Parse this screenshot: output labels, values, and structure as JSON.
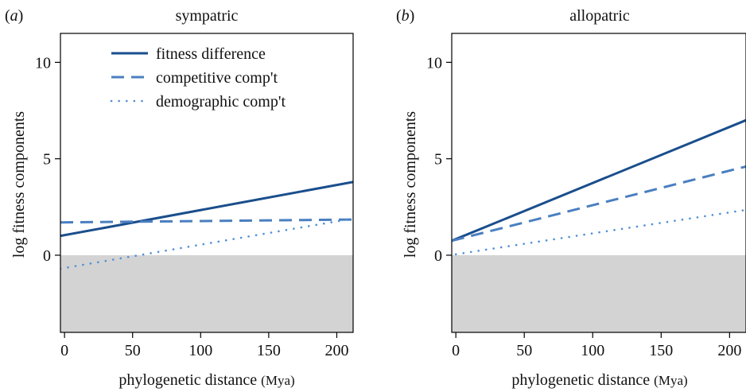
{
  "colors": {
    "fitness_difference": "#1a4e8c",
    "competitive": "#4a7fc1",
    "demographic": "#4f8fd6",
    "shading": "#d3d3d3",
    "frame": "#000000"
  },
  "chart_data": [
    {
      "type": "line",
      "panel_label_open": "(",
      "panel_label_letter": "a",
      "panel_label_close": ")",
      "title": "sympatric",
      "xlabel": "phylogenetic distance",
      "xunit": "(Mya)",
      "ylabel": "log fitness components",
      "xlim": [
        -3,
        212
      ],
      "ylim": [
        -4,
        11.5
      ],
      "xticks": [
        0,
        50,
        100,
        150,
        200
      ],
      "yticks": [
        0,
        5,
        10
      ],
      "shade_below": 0,
      "grid": false,
      "legend": {
        "placement": "top-left",
        "entries": [
          "fitness difference",
          "competitive comp't",
          "demographic comp't"
        ]
      },
      "series": [
        {
          "name": "fitness difference",
          "style": "solid",
          "x": [
            -3,
            212
          ],
          "y": [
            1.0,
            3.8
          ]
        },
        {
          "name": "competitive comp't",
          "style": "dashed",
          "x": [
            -3,
            212
          ],
          "y": [
            1.7,
            1.85
          ]
        },
        {
          "name": "demographic comp't",
          "style": "dotted",
          "x": [
            -3,
            212
          ],
          "y": [
            -0.7,
            1.9
          ]
        }
      ]
    },
    {
      "type": "line",
      "panel_label_open": "(",
      "panel_label_letter": "b",
      "panel_label_close": ")",
      "title": "allopatric",
      "xlabel": "phylogenetic distance",
      "xunit": "(Mya)",
      "ylabel": "log fitness components",
      "xlim": [
        -3,
        212
      ],
      "ylim": [
        -4,
        11.5
      ],
      "xticks": [
        0,
        50,
        100,
        150,
        200
      ],
      "yticks": [
        0,
        5,
        10
      ],
      "shade_below": 0,
      "grid": false,
      "series": [
        {
          "name": "fitness difference",
          "style": "solid",
          "x": [
            -3,
            212
          ],
          "y": [
            0.75,
            7.0
          ]
        },
        {
          "name": "competitive comp't",
          "style": "dashed",
          "x": [
            -3,
            212
          ],
          "y": [
            0.75,
            4.6
          ]
        },
        {
          "name": "demographic comp't",
          "style": "dotted",
          "x": [
            0,
            212
          ],
          "y": [
            0.05,
            2.35
          ]
        }
      ]
    }
  ]
}
